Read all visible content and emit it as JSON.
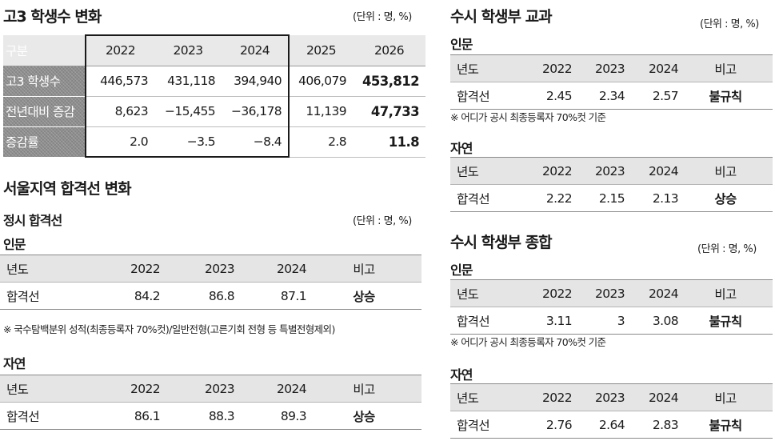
{
  "left": {
    "students": {
      "title": "고3 학생수 변화",
      "unit": "(단위 : 명, %)",
      "header": [
        "구분",
        "2022",
        "2023",
        "2024",
        "2025",
        "2026"
      ],
      "rows": [
        {
          "label": "고3 학생수",
          "values": [
            "446,573",
            "431,118",
            "394,940",
            "406,079",
            "453,812"
          ]
        },
        {
          "label": "전년대비 증감",
          "values": [
            "8,623",
            "−15,455",
            "−36,178",
            "11,139",
            "47,733"
          ]
        },
        {
          "label": "증감률",
          "values": [
            "2.0",
            "−3.5",
            "−8.4",
            "2.8",
            "11.8"
          ]
        }
      ]
    },
    "seoul": {
      "title": "서울지역 합격선 변화",
      "subtitle": "정시 합격선",
      "unit": "(단위 : 명, %)",
      "humanities": {
        "label": "인문",
        "header": [
          "년도",
          "2022",
          "2023",
          "2024",
          "비고"
        ],
        "row": [
          "합격선",
          "84.2",
          "86.8",
          "87.1",
          "상승"
        ]
      },
      "note": "※ 국수탐백분위 성적(최종등록자 70%컷)/일반전형(고른기회 전형 등 특별전형제외)",
      "science": {
        "label": "자연",
        "header": [
          "년도",
          "2022",
          "2023",
          "2024",
          "비고"
        ],
        "row": [
          "합격선",
          "86.1",
          "88.3",
          "89.3",
          "상승"
        ]
      }
    }
  },
  "right": {
    "subject": {
      "title": "수시 학생부 교과",
      "unit": "(단위 : 명, %)",
      "humanities": {
        "label": "인문",
        "header": [
          "년도",
          "2022",
          "2023",
          "2024",
          "비고"
        ],
        "row": [
          "합격선",
          "2.45",
          "2.34",
          "2.57",
          "불규칙"
        ]
      },
      "note": "※ 어디가 공시 최종등록자 70%컷 기준",
      "science": {
        "label": "자연",
        "header": [
          "년도",
          "2022",
          "2023",
          "2024",
          "비고"
        ],
        "row": [
          "합격선",
          "2.22",
          "2.15",
          "2.13",
          "상승"
        ]
      }
    },
    "comprehensive": {
      "title": "수시 학생부 종합",
      "unit": "(단위 : 명, %)",
      "humanities": {
        "label": "인문",
        "header": [
          "년도",
          "2022",
          "2023",
          "2024",
          "비고"
        ],
        "row": [
          "합격선",
          "3.11",
          "3",
          "3.08",
          "불규칙"
        ]
      },
      "note": "※ 어디가 공시 최종등록자 70%컷 기준",
      "science": {
        "label": "자연",
        "header": [
          "년도",
          "2022",
          "2023",
          "2024",
          "비고"
        ],
        "row": [
          "합격선",
          "2.76",
          "2.64",
          "2.83",
          "불규칙"
        ]
      }
    }
  }
}
